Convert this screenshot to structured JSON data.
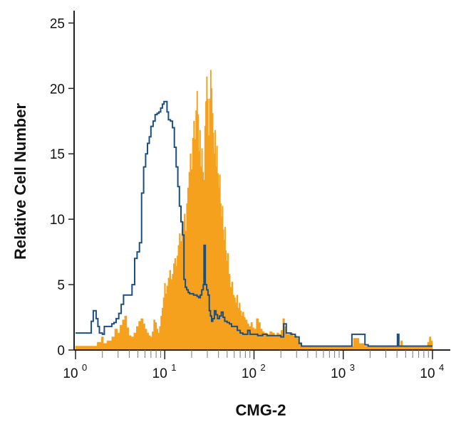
{
  "chart_data": {
    "type": "histogram",
    "title": "",
    "xlabel": "CMG-2",
    "ylabel": "Relative Cell Number",
    "x_scale": "log",
    "xlim": [
      1,
      10000
    ],
    "ylim": [
      0,
      26
    ],
    "y_ticks": [
      0,
      5,
      10,
      15,
      20,
      25
    ],
    "x_ticks": [
      {
        "value": 1,
        "base": "10",
        "exp": "0"
      },
      {
        "value": 10,
        "base": "10",
        "exp": "1"
      },
      {
        "value": 100,
        "base": "10",
        "exp": "2"
      },
      {
        "value": 1000,
        "base": "10",
        "exp": "3"
      },
      {
        "value": 10000,
        "base": "10",
        "exp": "4"
      }
    ],
    "series": [
      {
        "style": "filled",
        "color": "#f5a11e",
        "points": [
          [
            1.0,
            0.3
          ],
          [
            1.7,
            0.3
          ],
          [
            1.75,
            0.6
          ],
          [
            1.95,
            1.0
          ],
          [
            2.05,
            0.5
          ],
          [
            2.25,
            0.7
          ],
          [
            2.55,
            1.0
          ],
          [
            2.75,
            1.6
          ],
          [
            2.95,
            1.3
          ],
          [
            3.15,
            1.9
          ],
          [
            3.35,
            2.3
          ],
          [
            3.55,
            2.6
          ],
          [
            3.75,
            1.7
          ],
          [
            3.95,
            1.1
          ],
          [
            4.2,
            1.0
          ],
          [
            4.5,
            1.3
          ],
          [
            4.8,
            1.8
          ],
          [
            5.1,
            2.2
          ],
          [
            5.4,
            2.4
          ],
          [
            5.7,
            2.0
          ],
          [
            6.0,
            1.6
          ],
          [
            6.3,
            1.3
          ],
          [
            6.6,
            1.1
          ],
          [
            6.9,
            1.0
          ],
          [
            7.2,
            1.4
          ],
          [
            7.5,
            2.3
          ],
          [
            7.8,
            2.1
          ],
          [
            8.1,
            1.6
          ],
          [
            8.4,
            1.3
          ],
          [
            8.7,
            1.8
          ],
          [
            9.0,
            2.6
          ],
          [
            9.3,
            3.2
          ],
          [
            9.6,
            4.0
          ],
          [
            9.9,
            5.1
          ],
          [
            10.2,
            4.3
          ],
          [
            10.5,
            4.9
          ],
          [
            10.9,
            5.5
          ],
          [
            11.3,
            6.1
          ],
          [
            11.7,
            5.4
          ],
          [
            12.1,
            5.8
          ],
          [
            12.5,
            6.6
          ],
          [
            12.9,
            7.0
          ],
          [
            13.3,
            6.4
          ],
          [
            13.7,
            7.2
          ],
          [
            14.1,
            8.0
          ],
          [
            14.5,
            8.9
          ],
          [
            15.0,
            8.3
          ],
          [
            15.5,
            9.2
          ],
          [
            16.0,
            9.8
          ],
          [
            16.5,
            10.4
          ],
          [
            17.0,
            9.1
          ],
          [
            17.5,
            11.2
          ],
          [
            18.0,
            12.4
          ],
          [
            18.6,
            13.6
          ],
          [
            19.2,
            15.0
          ],
          [
            19.8,
            13.8
          ],
          [
            20.4,
            16.2
          ],
          [
            21.0,
            17.5
          ],
          [
            21.6,
            16.1
          ],
          [
            22.2,
            18.3
          ],
          [
            22.8,
            19.8
          ],
          [
            23.4,
            18.0
          ],
          [
            24.0,
            15.2
          ],
          [
            24.6,
            16.8
          ],
          [
            25.2,
            14.0
          ],
          [
            25.8,
            15.4
          ],
          [
            26.5,
            13.6
          ],
          [
            27.2,
            13.0
          ],
          [
            27.9,
            17.1
          ],
          [
            28.6,
            19.0
          ],
          [
            29.3,
            20.9
          ],
          [
            30.0,
            19.2
          ],
          [
            30.8,
            16.4
          ],
          [
            31.6,
            19.2
          ],
          [
            32.4,
            21.4
          ],
          [
            33.2,
            20.0
          ],
          [
            34.0,
            18.1
          ],
          [
            34.8,
            16.6
          ],
          [
            35.6,
            15.0
          ],
          [
            36.4,
            16.8
          ],
          [
            37.2,
            14.0
          ],
          [
            38.0,
            15.6
          ],
          [
            39.0,
            13.5
          ],
          [
            40.0,
            12.4
          ],
          [
            41.0,
            13.4
          ],
          [
            42.0,
            11.2
          ],
          [
            43.0,
            10.2
          ],
          [
            44.0,
            11.0
          ],
          [
            45.0,
            9.2
          ],
          [
            46.0,
            8.4
          ],
          [
            47.0,
            9.4
          ],
          [
            48.0,
            7.6
          ],
          [
            49.0,
            6.8
          ],
          [
            50.0,
            7.4
          ],
          [
            52.0,
            5.8
          ],
          [
            54.0,
            4.8
          ],
          [
            56.0,
            5.2
          ],
          [
            58.0,
            4.2
          ],
          [
            60.0,
            4.0
          ],
          [
            62.0,
            3.6
          ],
          [
            64.0,
            4.2
          ],
          [
            66.0,
            3.2
          ],
          [
            68.0,
            3.6
          ],
          [
            70.0,
            3.0
          ],
          [
            72.0,
            2.6
          ],
          [
            74.0,
            2.9
          ],
          [
            77.0,
            2.5
          ],
          [
            80.0,
            2.3
          ],
          [
            84.0,
            2.0
          ],
          [
            88.0,
            1.8
          ],
          [
            92.0,
            2.1
          ],
          [
            96.0,
            1.7
          ],
          [
            100,
            1.6
          ],
          [
            106,
            2.4
          ],
          [
            112,
            2.1
          ],
          [
            118,
            1.6
          ],
          [
            124,
            1.4
          ],
          [
            130,
            1.3
          ],
          [
            140,
            1.2
          ],
          [
            150,
            1.4
          ],
          [
            160,
            1.3
          ],
          [
            170,
            1.1
          ],
          [
            180,
            1.3
          ],
          [
            190,
            1.2
          ],
          [
            200,
            1.5
          ],
          [
            210,
            2.4
          ],
          [
            220,
            1.8
          ],
          [
            230,
            1.2
          ],
          [
            250,
            1.3
          ],
          [
            270,
            1.1
          ],
          [
            300,
            0.9
          ],
          [
            320,
            0.6
          ],
          [
            340,
            0.3
          ],
          [
            1200,
            0.3
          ],
          [
            1300,
            0.9
          ],
          [
            1500,
            0.5
          ],
          [
            1700,
            0.3
          ],
          [
            4200,
            0.3
          ],
          [
            4400,
            0.7
          ],
          [
            4600,
            0.3
          ],
          [
            8500,
            0.3
          ],
          [
            8800,
            0.6
          ],
          [
            9200,
            1.0
          ],
          [
            9600,
            0.7
          ],
          [
            10000,
            0.7
          ]
        ]
      },
      {
        "style": "outline",
        "color": "#1c4f80",
        "points": [
          [
            1.0,
            1.3
          ],
          [
            1.45,
            1.3
          ],
          [
            1.5,
            2.2
          ],
          [
            1.58,
            3.0
          ],
          [
            1.7,
            2.4
          ],
          [
            1.78,
            1.8
          ],
          [
            1.85,
            1.3
          ],
          [
            2.0,
            1.2
          ],
          [
            2.1,
            1.8
          ],
          [
            2.4,
            1.8
          ],
          [
            2.55,
            2.0
          ],
          [
            2.7,
            2.1
          ],
          [
            2.85,
            2.4
          ],
          [
            3.05,
            2.8
          ],
          [
            3.25,
            3.5
          ],
          [
            3.45,
            4.2
          ],
          [
            4.0,
            4.2
          ],
          [
            4.3,
            5.0
          ],
          [
            4.6,
            7.0
          ],
          [
            4.9,
            7.5
          ],
          [
            5.2,
            8.2
          ],
          [
            5.5,
            12.0
          ],
          [
            5.8,
            14.0
          ],
          [
            6.1,
            15.0
          ],
          [
            6.4,
            15.8
          ],
          [
            6.7,
            16.3
          ],
          [
            7.0,
            17.1
          ],
          [
            7.4,
            17.5
          ],
          [
            7.8,
            18.0
          ],
          [
            8.2,
            18.1
          ],
          [
            8.6,
            18.2
          ],
          [
            9.0,
            18.5
          ],
          [
            9.4,
            18.8
          ],
          [
            9.8,
            19.0
          ],
          [
            10.2,
            19.0
          ],
          [
            10.6,
            18.2
          ],
          [
            11.0,
            17.6
          ],
          [
            11.6,
            17.5
          ],
          [
            12.2,
            17.0
          ],
          [
            12.8,
            15.5
          ],
          [
            13.4,
            14.0
          ],
          [
            14.0,
            12.5
          ],
          [
            14.6,
            11.0
          ],
          [
            15.2,
            9.8
          ],
          [
            15.8,
            8.8
          ],
          [
            16.4,
            5.4
          ],
          [
            17.0,
            4.8
          ],
          [
            17.6,
            4.6
          ],
          [
            18.3,
            4.4
          ],
          [
            19.0,
            4.3
          ],
          [
            20.0,
            4.3
          ],
          [
            21.0,
            4.2
          ],
          [
            22.0,
            4.2
          ],
          [
            23.0,
            4.1
          ],
          [
            24.0,
            4.0
          ],
          [
            25.0,
            4.2
          ],
          [
            26.0,
            4.6
          ],
          [
            27.0,
            5.0
          ],
          [
            27.5,
            8.0
          ],
          [
            28.5,
            5.0
          ],
          [
            29.5,
            4.6
          ],
          [
            30.5,
            4.2
          ],
          [
            31.5,
            3.0
          ],
          [
            32.5,
            2.6
          ],
          [
            33.5,
            2.2
          ],
          [
            34.5,
            2.4
          ],
          [
            36.0,
            3.0
          ],
          [
            37.5,
            2.7
          ],
          [
            39.0,
            2.4
          ],
          [
            41.0,
            2.6
          ],
          [
            43.0,
            2.9
          ],
          [
            45.0,
            2.5
          ],
          [
            47.0,
            2.2
          ],
          [
            50.0,
            2.1
          ],
          [
            53.0,
            2.0
          ],
          [
            56.0,
            1.8
          ],
          [
            60.0,
            1.8
          ],
          [
            65.0,
            1.5
          ],
          [
            70.0,
            1.3
          ],
          [
            75.0,
            1.2
          ],
          [
            80.0,
            1.2
          ],
          [
            85.0,
            1.5
          ],
          [
            90.0,
            1.2
          ],
          [
            100,
            1.2
          ],
          [
            110,
            1.1
          ],
          [
            125,
            1.2
          ],
          [
            140,
            1.1
          ],
          [
            160,
            1.1
          ],
          [
            180,
            1.1
          ],
          [
            200,
            1.0
          ],
          [
            215,
            2.0
          ],
          [
            230,
            1.3
          ],
          [
            260,
            1.2
          ],
          [
            290,
            1.0
          ],
          [
            320,
            0.5
          ],
          [
            340,
            0.3
          ],
          [
            1180,
            0.3
          ],
          [
            1250,
            1.2
          ],
          [
            1600,
            1.2
          ],
          [
            1750,
            0.4
          ],
          [
            1900,
            0.3
          ],
          [
            3900,
            0.3
          ],
          [
            4050,
            1.2
          ],
          [
            4200,
            0.3
          ],
          [
            10000,
            0.3
          ]
        ]
      }
    ],
    "grid": false,
    "legend": "none"
  }
}
